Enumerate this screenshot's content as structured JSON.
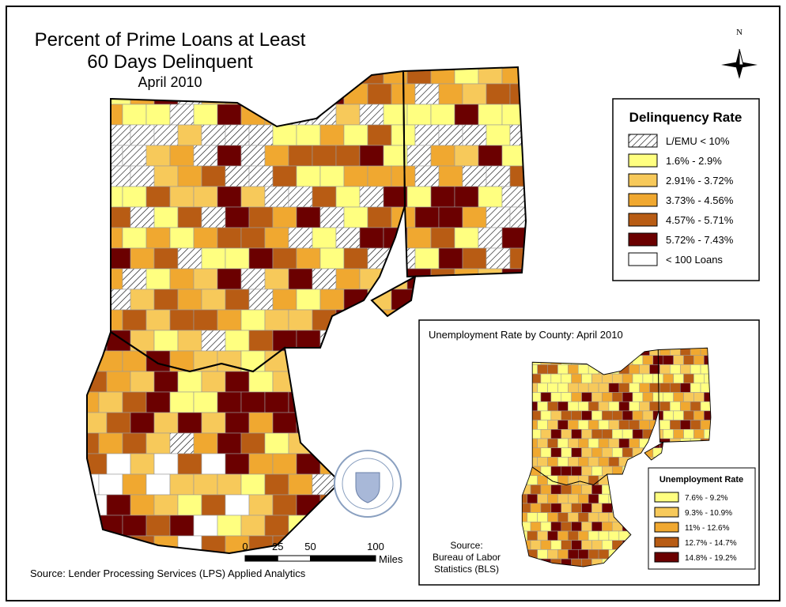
{
  "title": {
    "line1": "Percent of Prime Loans at Least",
    "line2": "60 Days Delinquent",
    "date": "April 2010"
  },
  "north_label": "N",
  "legend": {
    "title": "Delinquency Rate",
    "items": [
      {
        "label": "L/EMU < 10%",
        "color": "#ffffff",
        "hatched": true
      },
      {
        "label": "1.6% - 2.9%",
        "color": "#ffff80"
      },
      {
        "label": "2.91% - 3.72%",
        "color": "#f7c95a"
      },
      {
        "label": "3.73% - 4.56%",
        "color": "#f0a830"
      },
      {
        "label": "4.57% - 5.71%",
        "color": "#b85c14"
      },
      {
        "label": "5.72% - 7.43%",
        "color": "#6b0000"
      },
      {
        "label": "< 100 Loans",
        "color": "#ffffff"
      }
    ]
  },
  "scale_bar": {
    "ticks": [
      0,
      25,
      50,
      100
    ],
    "unit": "Miles"
  },
  "source": "Source: Lender Processing Services (LPS) Applied Analytics",
  "inset": {
    "title": "Unemployment Rate by County: April 2010",
    "legend": {
      "title": "Unemployment Rate",
      "items": [
        {
          "label": "7.6% - 9.2%",
          "color": "#ffff80"
        },
        {
          "label": "9.3% - 10.9%",
          "color": "#f7c95a"
        },
        {
          "label": "11% - 12.6%",
          "color": "#f0a830"
        },
        {
          "label": "12.7% - 14.7%",
          "color": "#b85c14"
        },
        {
          "label": "14.8% - 19.2%",
          "color": "#6b0000"
        }
      ]
    },
    "source": [
      "Source:",
      "Bureau of Labor",
      "Statistics (BLS)"
    ]
  }
}
